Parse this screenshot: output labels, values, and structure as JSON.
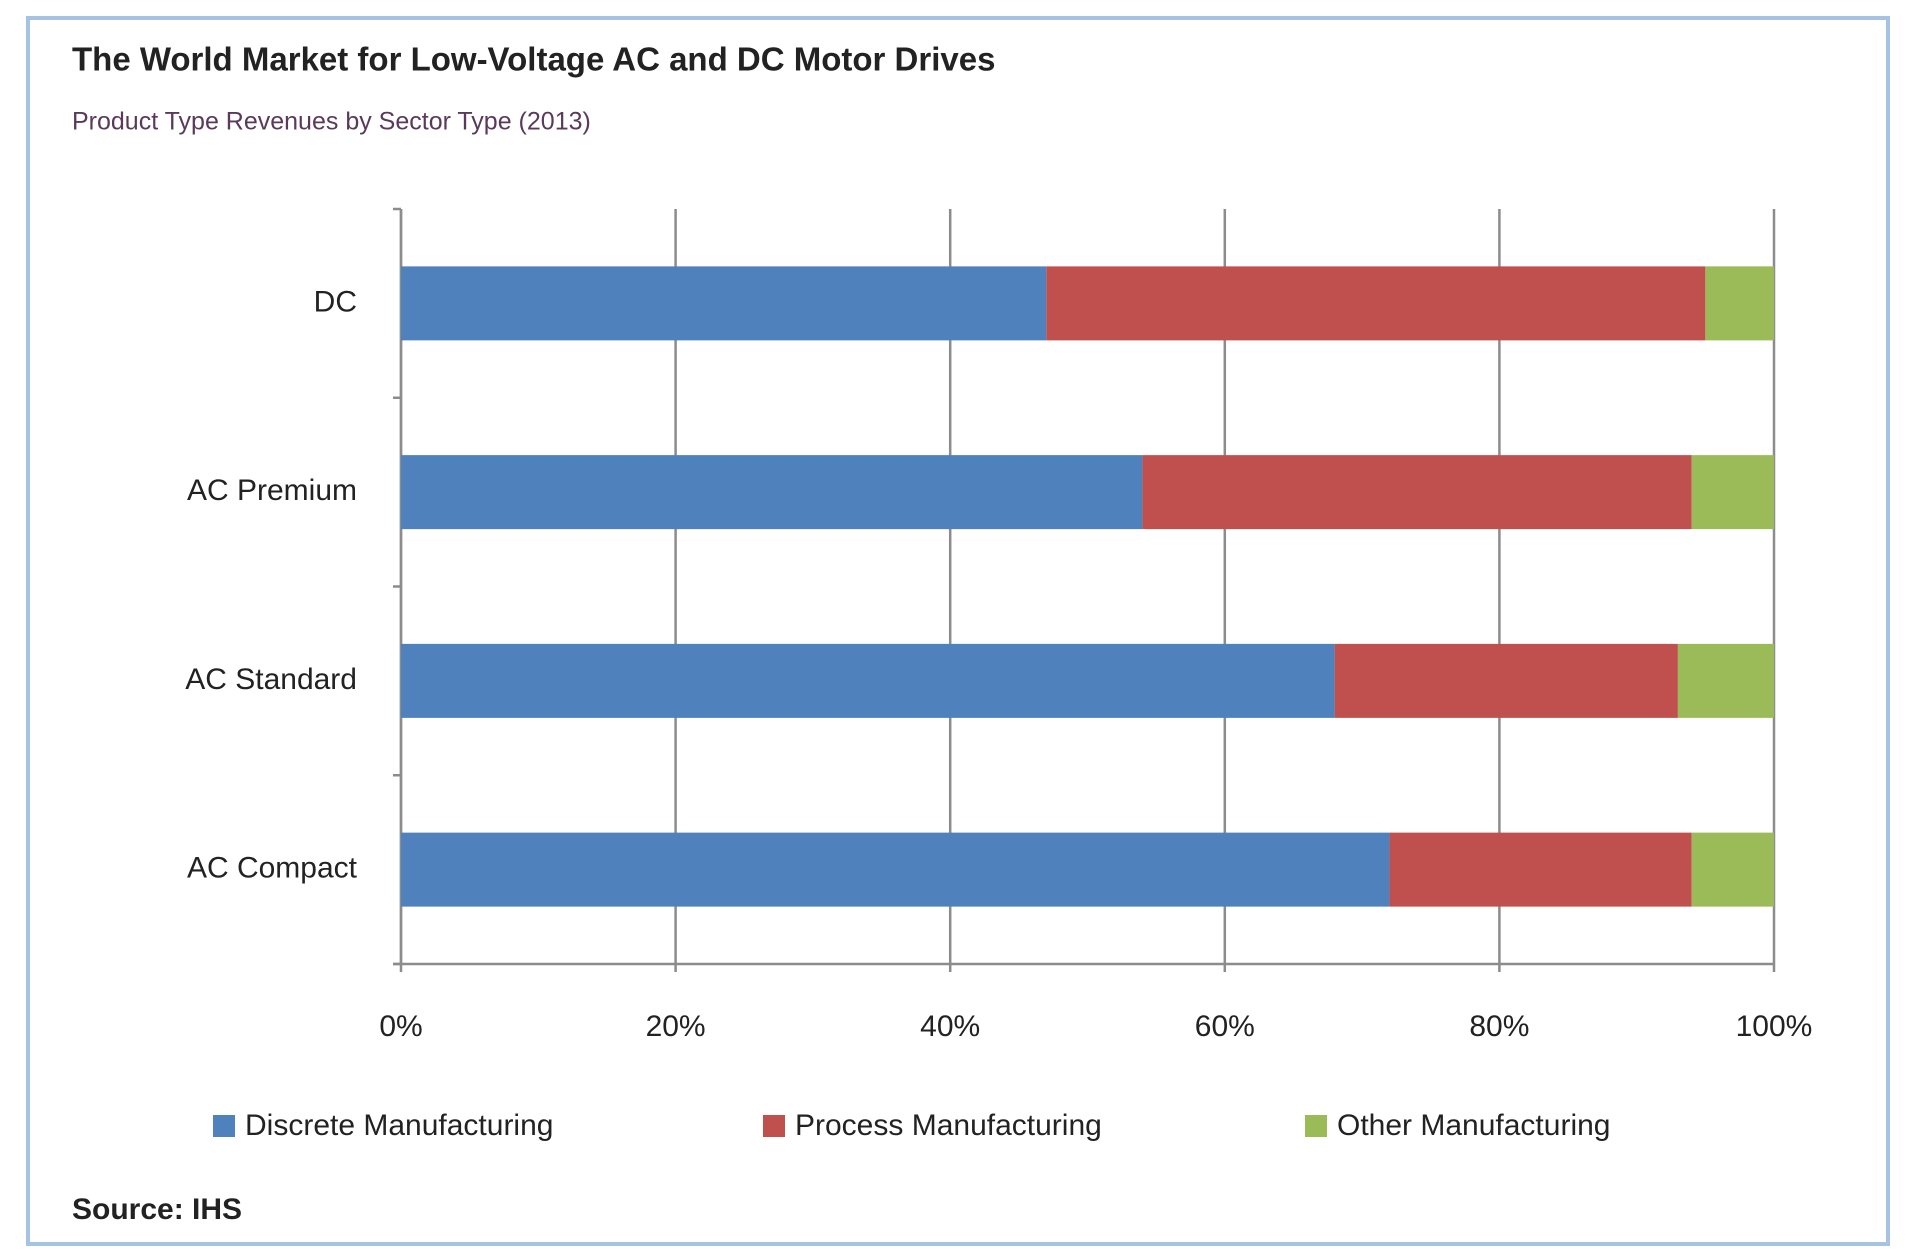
{
  "chart_data": {
    "type": "stacked-bar-horizontal",
    "title": "The World Market for Low-Voltage AC and DC Motor Drives",
    "subtitle": "Product Type Revenues by Sector Type (2013)",
    "categories": [
      "DC",
      "AC Premium",
      "AC Standard",
      "AC Compact"
    ],
    "series": [
      {
        "name": "Discrete Manufacturing",
        "color": "#4f81bd",
        "values": [
          47,
          54,
          68,
          72
        ]
      },
      {
        "name": "Process Manufacturing",
        "color": "#c0504d",
        "values": [
          48,
          40,
          25,
          22
        ]
      },
      {
        "name": "Other Manufacturing",
        "color": "#9bbb59",
        "values": [
          5,
          6,
          7,
          6
        ]
      }
    ],
    "xlim": [
      0,
      100
    ],
    "xticks": [
      {
        "value": 0,
        "label": "0%"
      },
      {
        "value": 20,
        "label": "20%"
      },
      {
        "value": 40,
        "label": "40%"
      },
      {
        "value": 60,
        "label": "60%"
      },
      {
        "value": 80,
        "label": "80%"
      },
      {
        "value": 100,
        "label": "100%"
      }
    ],
    "grid": true,
    "legend": "bottom",
    "source": "Source: IHS"
  }
}
